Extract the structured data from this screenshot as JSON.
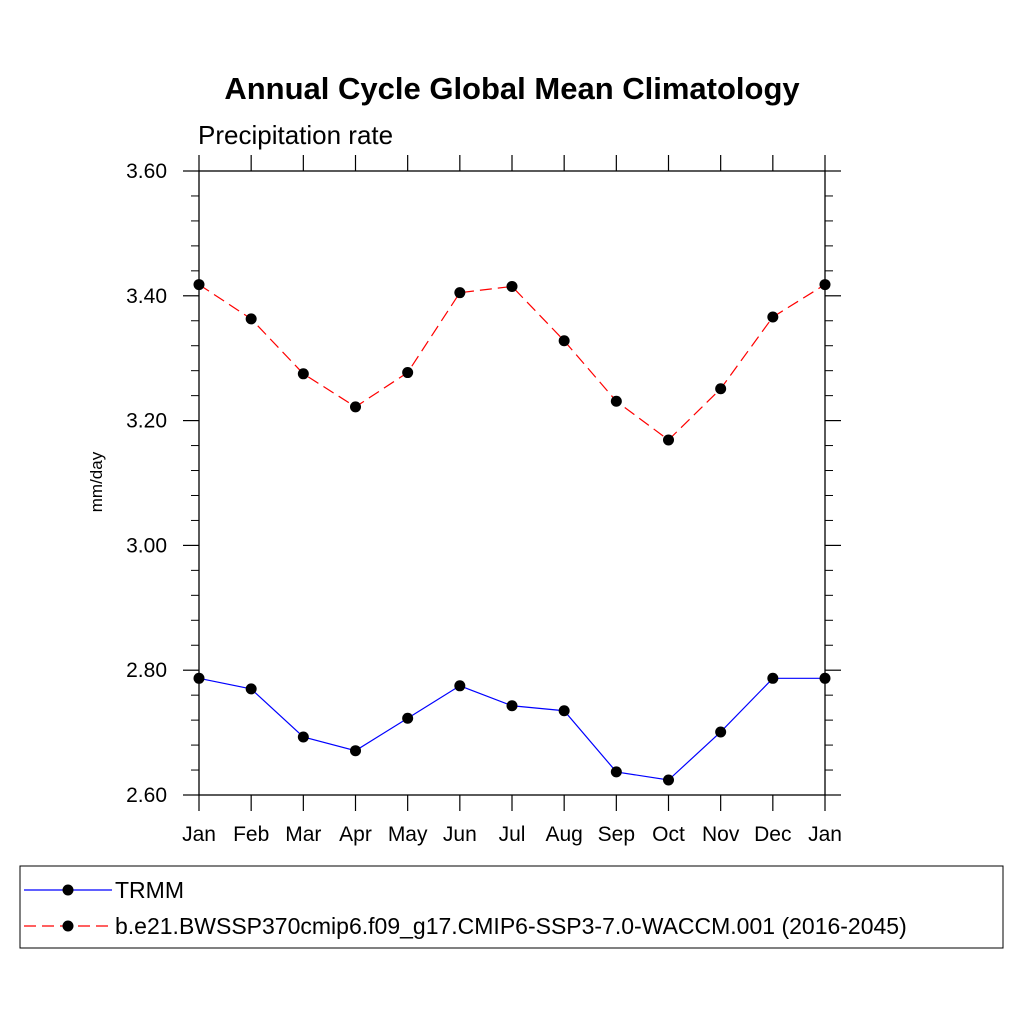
{
  "chart_data": {
    "type": "line",
    "title": "Annual Cycle Global Mean Climatology",
    "subtitle": "Precipitation rate",
    "ylabel": "mm/day",
    "xlabel": "",
    "x_tick_labels": [
      "Jan",
      "Feb",
      "Mar",
      "Apr",
      "May",
      "Jun",
      "Jul",
      "Aug",
      "Sep",
      "Oct",
      "Nov",
      "Dec",
      "Jan"
    ],
    "y_tick_labels": [
      "2.60",
      "2.80",
      "3.00",
      "3.20",
      "3.40",
      "3.60"
    ],
    "ylim": [
      2.6,
      3.6
    ],
    "grid": false,
    "legend_placement": "bottom",
    "series": [
      {
        "name": "TRMM",
        "color": "#0000ff",
        "dash": "solid",
        "values": [
          2.787,
          2.77,
          2.693,
          2.671,
          2.723,
          2.775,
          2.743,
          2.735,
          2.637,
          2.624,
          2.701,
          2.787,
          2.787
        ]
      },
      {
        "name": "b.e21.BWSSP370cmip6.f09_g17.CMIP6-SSP3-7.0-WACCM.001 (2016-2045)",
        "color": "#ff0000",
        "dash": "dashed",
        "values": [
          3.418,
          3.363,
          3.275,
          3.222,
          3.277,
          3.405,
          3.415,
          3.328,
          3.231,
          3.169,
          3.251,
          3.366,
          3.418
        ]
      }
    ]
  }
}
